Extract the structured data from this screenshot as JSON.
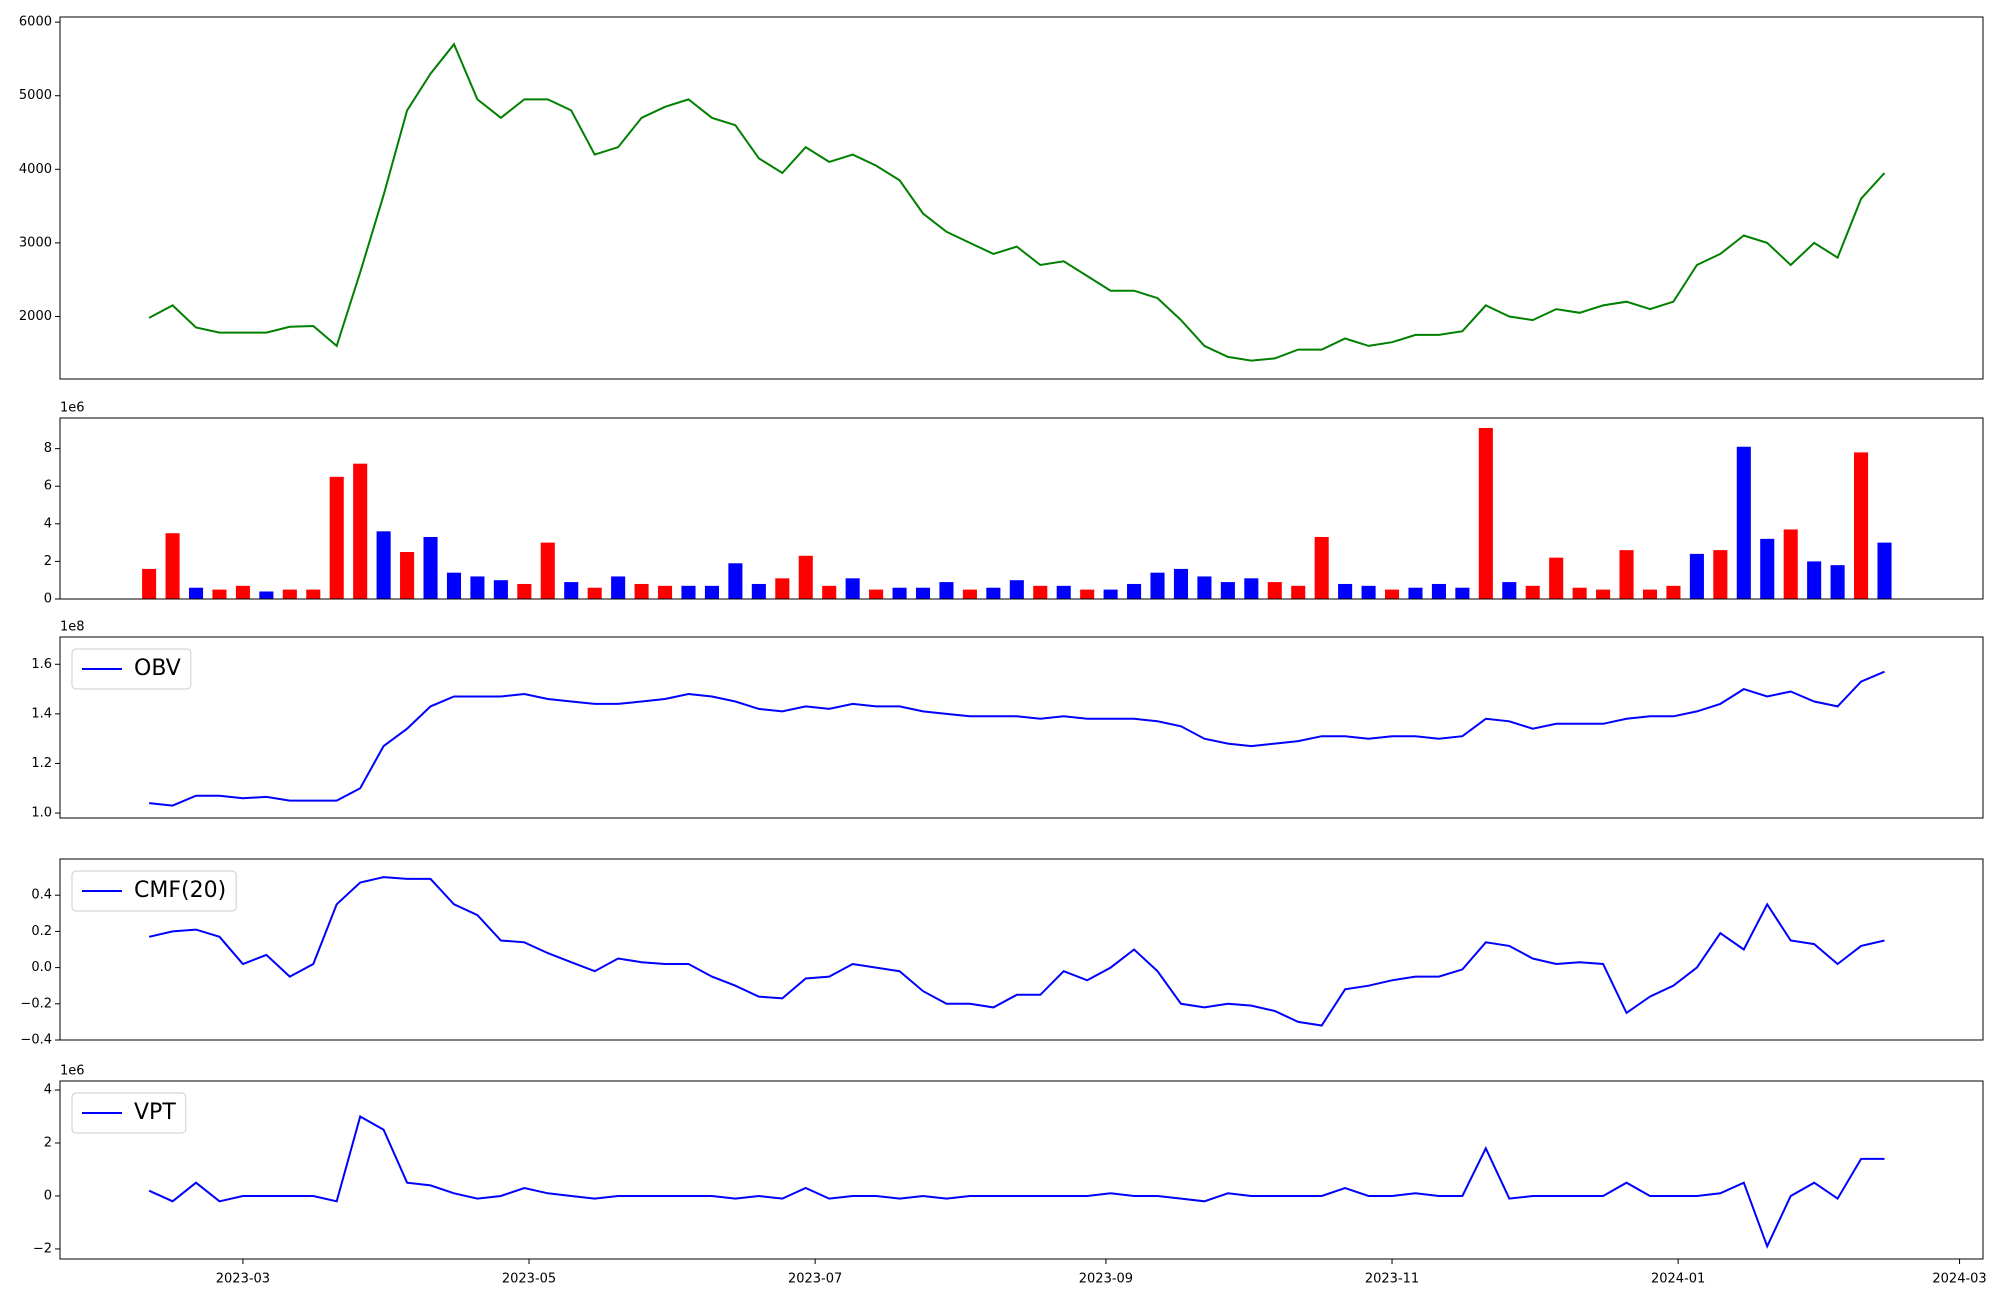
{
  "chart_data": [
    {
      "type": "line",
      "x": [
        39,
        44,
        49,
        54,
        59,
        64,
        69,
        74,
        79,
        84,
        89,
        94,
        99,
        104,
        109,
        114,
        119,
        124,
        129,
        134,
        139,
        144,
        149,
        154,
        159,
        164,
        169,
        174,
        179,
        184,
        189,
        194,
        199,
        204,
        209,
        214,
        219,
        224,
        229,
        234,
        239,
        244,
        249,
        254,
        259,
        264,
        269,
        274,
        279,
        284,
        289,
        294,
        299,
        304,
        309,
        314,
        319,
        324,
        329,
        334,
        339,
        344,
        349,
        354,
        359,
        364,
        369,
        374,
        379,
        384,
        389,
        394,
        399,
        404,
        409
      ],
      "xlim": [
        20,
        430
      ],
      "ylim": [
        1150,
        6070
      ],
      "yticks": [
        2000,
        3000,
        4000,
        5000,
        6000
      ],
      "series": [
        {
          "color": "green",
          "values": [
            1980,
            2150,
            1850,
            1780,
            1780,
            1780,
            1860,
            1870,
            1600,
            2600,
            3650,
            4800,
            5300,
            5700,
            4950,
            4700,
            4950,
            4950,
            4800,
            4200,
            4300,
            4700,
            4850,
            4950,
            4700,
            4600,
            4150,
            3950,
            4300,
            4100,
            4200,
            4050,
            3850,
            3400,
            3150,
            3000,
            2850,
            2950,
            2700,
            2750,
            2550,
            2350,
            2350,
            2250,
            1950,
            1600,
            1450,
            1400,
            1430,
            1550,
            1550,
            1700,
            1600,
            1650,
            1750,
            1750,
            1800,
            2150,
            2000,
            1950,
            2100,
            2050,
            2150,
            2200,
            2100,
            2200,
            2700,
            2850,
            3100,
            3000,
            2700,
            3000,
            2800,
            3600,
            3950
          ]
        }
      ]
    },
    {
      "type": "bar",
      "y_offset_label": "1e6",
      "x": [
        39,
        44,
        49,
        54,
        59,
        64,
        69,
        74,
        79,
        84,
        89,
        94,
        99,
        104,
        109,
        114,
        119,
        124,
        129,
        134,
        139,
        144,
        149,
        154,
        159,
        164,
        169,
        174,
        179,
        184,
        189,
        194,
        199,
        204,
        209,
        214,
        219,
        224,
        229,
        234,
        239,
        244,
        249,
        254,
        259,
        264,
        269,
        274,
        279,
        284,
        289,
        294,
        299,
        304,
        309,
        314,
        319,
        324,
        329,
        334,
        339,
        344,
        349,
        354,
        359,
        364,
        369,
        374,
        379,
        384,
        389,
        394,
        399,
        404,
        409
      ],
      "xlim": [
        20,
        430
      ],
      "ylim": [
        0,
        9.63
      ],
      "yticks": [
        0,
        2,
        4,
        6,
        8
      ],
      "series": [
        {
          "values": [
            1.6,
            3.5,
            0.6,
            0.5,
            0.7,
            0.4,
            0.5,
            0.5,
            6.5,
            7.2,
            3.6,
            2.5,
            3.3,
            1.4,
            1.2,
            1.0,
            0.8,
            3.0,
            0.9,
            0.6,
            1.2,
            0.8,
            0.7,
            0.7,
            0.7,
            1.9,
            0.8,
            1.1,
            2.3,
            0.7,
            1.1,
            0.5,
            0.6,
            0.6,
            0.9,
            0.5,
            0.6,
            1.0,
            0.7,
            0.7,
            0.5,
            0.5,
            0.8,
            1.4,
            1.6,
            1.2,
            0.9,
            1.1,
            0.9,
            0.7,
            3.3,
            0.8,
            0.7,
            0.5,
            0.6,
            0.8,
            0.6,
            9.1,
            0.9,
            0.7,
            2.2,
            0.6,
            0.5,
            2.6,
            0.5,
            0.7,
            2.4,
            2.6,
            8.1,
            3.2,
            3.7,
            2.0,
            1.8,
            7.8,
            3.0
          ],
          "colors": [
            "red",
            "red",
            "blue",
            "red",
            "red",
            "blue",
            "red",
            "red",
            "red",
            "red",
            "blue",
            "red",
            "blue",
            "blue",
            "blue",
            "blue",
            "red",
            "red",
            "blue",
            "red",
            "blue",
            "red",
            "red",
            "blue",
            "blue",
            "blue",
            "blue",
            "red",
            "red",
            "red",
            "blue",
            "red",
            "blue",
            "blue",
            "blue",
            "red",
            "blue",
            "blue",
            "red",
            "blue",
            "red",
            "blue",
            "blue",
            "blue",
            "blue",
            "blue",
            "blue",
            "blue",
            "red",
            "red",
            "red",
            "blue",
            "blue",
            "red",
            "blue",
            "blue",
            "blue",
            "red",
            "blue",
            "red",
            "red",
            "red",
            "red",
            "red",
            "red",
            "red",
            "blue",
            "red",
            "blue",
            "blue",
            "red",
            "blue",
            "blue",
            "red",
            "blue"
          ]
        }
      ]
    },
    {
      "type": "line",
      "y_offset_label": "1e8",
      "legend": "upper left",
      "x": [
        39,
        44,
        49,
        54,
        59,
        64,
        69,
        74,
        79,
        84,
        89,
        94,
        99,
        104,
        109,
        114,
        119,
        124,
        129,
        134,
        139,
        144,
        149,
        154,
        159,
        164,
        169,
        174,
        179,
        184,
        189,
        194,
        199,
        204,
        209,
        214,
        219,
        224,
        229,
        234,
        239,
        244,
        249,
        254,
        259,
        264,
        269,
        274,
        279,
        284,
        289,
        294,
        299,
        304,
        309,
        314,
        319,
        324,
        329,
        334,
        339,
        344,
        349,
        354,
        359,
        364,
        369,
        374,
        379,
        384,
        389,
        394,
        399,
        404,
        409
      ],
      "xlim": [
        20,
        430
      ],
      "ylim": [
        0.98,
        1.71
      ],
      "yticks": [
        {
          "value": 1,
          "label": "1.0"
        },
        1.2,
        1.4,
        1.6
      ],
      "series": [
        {
          "name": "OBV",
          "color": "blue",
          "values": [
            1.04,
            1.03,
            1.07,
            1.07,
            1.06,
            1.065,
            1.05,
            1.05,
            1.05,
            1.1,
            1.27,
            1.34,
            1.43,
            1.47,
            1.47,
            1.47,
            1.48,
            1.46,
            1.45,
            1.44,
            1.44,
            1.45,
            1.46,
            1.48,
            1.47,
            1.45,
            1.42,
            1.41,
            1.43,
            1.42,
            1.44,
            1.43,
            1.43,
            1.41,
            1.4,
            1.39,
            1.39,
            1.39,
            1.38,
            1.39,
            1.38,
            1.38,
            1.38,
            1.37,
            1.35,
            1.3,
            1.28,
            1.27,
            1.28,
            1.29,
            1.31,
            1.31,
            1.3,
            1.31,
            1.31,
            1.3,
            1.31,
            1.38,
            1.37,
            1.34,
            1.36,
            1.36,
            1.36,
            1.38,
            1.39,
            1.39,
            1.41,
            1.44,
            1.5,
            1.47,
            1.49,
            1.45,
            1.43,
            1.53,
            1.57
          ]
        }
      ]
    },
    {
      "type": "line",
      "legend": "upper left",
      "x": [
        39,
        44,
        49,
        54,
        59,
        64,
        69,
        74,
        79,
        84,
        89,
        94,
        99,
        104,
        109,
        114,
        119,
        124,
        129,
        134,
        139,
        144,
        149,
        154,
        159,
        164,
        169,
        174,
        179,
        184,
        189,
        194,
        199,
        204,
        209,
        214,
        219,
        224,
        229,
        234,
        239,
        244,
        249,
        254,
        259,
        264,
        269,
        274,
        279,
        284,
        289,
        294,
        299,
        304,
        309,
        314,
        319,
        324,
        329,
        334,
        339,
        344,
        349,
        354,
        359,
        364,
        369,
        374,
        379,
        384,
        389,
        394,
        399,
        404,
        409
      ],
      "xlim": [
        20,
        430
      ],
      "ylim": [
        -0.4,
        0.6
      ],
      "yticks": [
        {
          "value": -0.4,
          "label": "−0.4"
        },
        {
          "value": -0.2,
          "label": "−0.2"
        },
        {
          "value": 0,
          "label": "0.0"
        },
        0.2,
        0.4
      ],
      "series": [
        {
          "name": "CMF(20)",
          "color": "blue",
          "values": [
            0.17,
            0.2,
            0.21,
            0.17,
            0.02,
            0.07,
            -0.05,
            0.02,
            0.35,
            0.47,
            0.5,
            0.49,
            0.49,
            0.35,
            0.29,
            0.15,
            0.14,
            0.08,
            0.03,
            -0.02,
            0.05,
            0.03,
            0.02,
            0.02,
            -0.05,
            -0.1,
            -0.16,
            -0.17,
            -0.06,
            -0.05,
            0.02,
            0.0,
            -0.02,
            -0.13,
            -0.2,
            -0.2,
            -0.22,
            -0.15,
            -0.15,
            -0.02,
            -0.07,
            0.0,
            0.1,
            -0.02,
            -0.2,
            -0.22,
            -0.2,
            -0.21,
            -0.24,
            -0.3,
            -0.32,
            -0.12,
            -0.1,
            -0.07,
            -0.05,
            -0.05,
            -0.01,
            0.14,
            0.12,
            0.05,
            0.02,
            0.03,
            0.02,
            -0.25,
            -0.16,
            -0.1,
            0.0,
            0.19,
            0.1,
            0.35,
            0.15,
            0.13,
            0.02,
            0.12,
            0.15
          ]
        }
      ]
    },
    {
      "type": "line",
      "y_offset_label": "1e6",
      "legend": "upper left",
      "x": [
        39,
        44,
        49,
        54,
        59,
        64,
        69,
        74,
        79,
        84,
        89,
        94,
        99,
        104,
        109,
        114,
        119,
        124,
        129,
        134,
        139,
        144,
        149,
        154,
        159,
        164,
        169,
        174,
        179,
        184,
        189,
        194,
        199,
        204,
        209,
        214,
        219,
        224,
        229,
        234,
        239,
        244,
        249,
        254,
        259,
        264,
        269,
        274,
        279,
        284,
        289,
        294,
        299,
        304,
        309,
        314,
        319,
        324,
        329,
        334,
        339,
        344,
        349,
        354,
        359,
        364,
        369,
        374,
        379,
        384,
        389,
        394,
        399,
        404,
        409
      ],
      "xlim": [
        20,
        430
      ],
      "ylim": [
        -2.38,
        4.34
      ],
      "yticks": [
        {
          "value": -2,
          "label": "−2"
        },
        0,
        2,
        4
      ],
      "xticks": [
        {
          "value": 59,
          "label": "2023-03"
        },
        {
          "value": 120,
          "label": "2023-05"
        },
        {
          "value": 181,
          "label": "2023-07"
        },
        {
          "value": 243,
          "label": "2023-09"
        },
        {
          "value": 304,
          "label": "2023-11"
        },
        {
          "value": 365,
          "label": "2024-01"
        },
        {
          "value": 425,
          "label": "2024-03"
        }
      ],
      "series": [
        {
          "name": "VPT",
          "color": "blue",
          "values": [
            0.2,
            -0.2,
            0.5,
            -0.2,
            0.0,
            0.0,
            0.0,
            0.0,
            -0.2,
            3.0,
            2.5,
            0.5,
            0.4,
            0.1,
            -0.1,
            0.0,
            0.3,
            0.1,
            0.0,
            -0.1,
            0.0,
            0.0,
            0.0,
            0.0,
            0.0,
            -0.1,
            0.0,
            -0.1,
            0.3,
            -0.1,
            0.0,
            0.0,
            -0.1,
            0.0,
            -0.1,
            0.0,
            0.0,
            0.0,
            0.0,
            0.0,
            0.0,
            0.1,
            0.0,
            0.0,
            -0.1,
            -0.2,
            0.1,
            0.0,
            0.0,
            0.0,
            0.0,
            0.3,
            0.0,
            0.0,
            0.1,
            0.0,
            0.0,
            1.8,
            -0.1,
            0.0,
            0.0,
            0.0,
            0.0,
            0.5,
            0.0,
            0.0,
            0.0,
            0.1,
            0.5,
            -1.9,
            0.0,
            0.5,
            -0.1,
            1.4,
            1.4
          ]
        }
      ]
    }
  ]
}
